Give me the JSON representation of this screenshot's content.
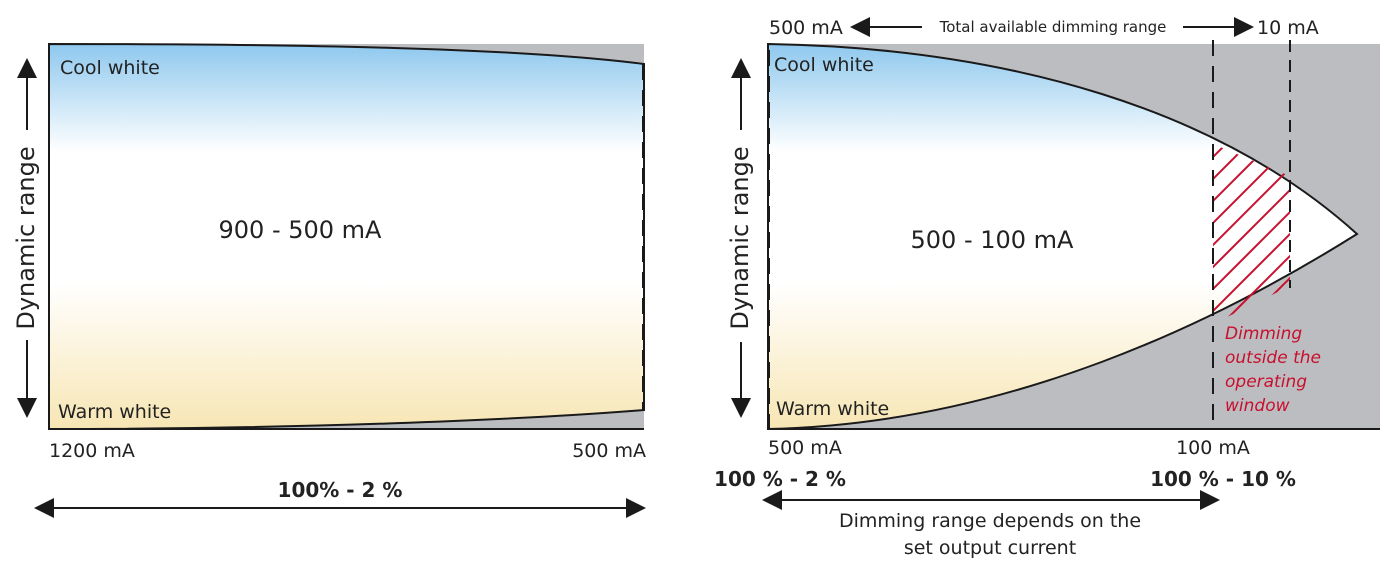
{
  "colors": {
    "cool": "#8ec8ee",
    "warm": "#f7e6b4",
    "gray": "#bcbdc0",
    "hatch": "#c8102e",
    "line": "#1a1a1a"
  },
  "left": {
    "axis_label": "Dynamic range",
    "top_label": "Cool white",
    "bottom_label": "Warm white",
    "center_label": "900 - 500 mA",
    "x_start": "1200 mA",
    "x_end": "500 mA",
    "range_label": "100% - 2 %"
  },
  "right": {
    "axis_label": "Dynamic range",
    "top_label": "Cool white",
    "bottom_label": "Warm white",
    "center_label": "500 - 100 mA",
    "top_left_value": "500 mA",
    "top_right_value": "10 mA",
    "total_range_label": "Total available dimming range",
    "x_start": "500 mA",
    "x_mid": "100 mA",
    "pct_start": "100 % - 2 %",
    "pct_mid": "100 % - 10 %",
    "outside_window_lines": [
      "Dimming",
      "outside the",
      "operating",
      "window"
    ],
    "range_note_lines": [
      "Dimming range depends on the",
      "set output current"
    ]
  }
}
